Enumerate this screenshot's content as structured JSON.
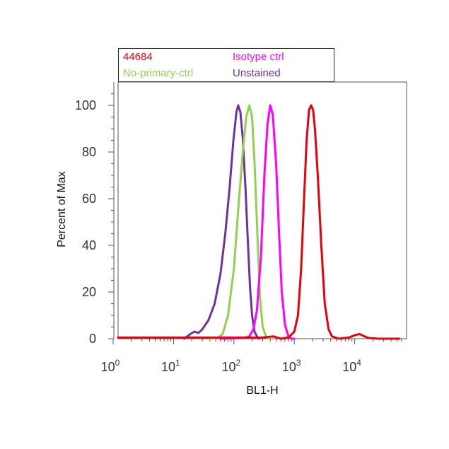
{
  "chart_data": {
    "type": "line",
    "xlabel": "BL1-H",
    "ylabel": "Percent of Max",
    "x_scale": "log",
    "xlim": [
      1,
      60000
    ],
    "ylim": [
      0,
      110
    ],
    "x_ticks": [
      {
        "base": "10",
        "exp": "0",
        "value": 1
      },
      {
        "base": "10",
        "exp": "1",
        "value": 10
      },
      {
        "base": "10",
        "exp": "2",
        "value": 100
      },
      {
        "base": "10",
        "exp": "3",
        "value": 1000
      },
      {
        "base": "10",
        "exp": "4",
        "value": 10000
      }
    ],
    "y_ticks": [
      "0",
      "20",
      "40",
      "60",
      "80",
      "100"
    ],
    "legend_position": "top",
    "series": [
      {
        "name": "44684",
        "color": "#e8000b",
        "points": [
          [
            1,
            0.5
          ],
          [
            200,
            0.5
          ],
          [
            300,
            0.5
          ],
          [
            450,
            1
          ],
          [
            600,
            0
          ],
          [
            800,
            0.5
          ],
          [
            1000,
            3
          ],
          [
            1150,
            10
          ],
          [
            1300,
            30
          ],
          [
            1450,
            60
          ],
          [
            1600,
            85
          ],
          [
            1750,
            98
          ],
          [
            1900,
            100
          ],
          [
            2050,
            98
          ],
          [
            2200,
            90
          ],
          [
            2450,
            70
          ],
          [
            2800,
            40
          ],
          [
            3200,
            15
          ],
          [
            3700,
            4
          ],
          [
            4200,
            1
          ],
          [
            5500,
            0
          ],
          [
            8000,
            0.5
          ],
          [
            10000,
            1.5
          ],
          [
            12000,
            2
          ],
          [
            14500,
            1
          ],
          [
            17000,
            0.3
          ],
          [
            25000,
            0
          ],
          [
            55000,
            0
          ]
        ]
      },
      {
        "name": "Isotype ctrl",
        "color": "#ff00ff",
        "points": [
          [
            60,
            0
          ],
          [
            150,
            0.3
          ],
          [
            180,
            1
          ],
          [
            210,
            4
          ],
          [
            240,
            12
          ],
          [
            280,
            35
          ],
          [
            320,
            70
          ],
          [
            360,
            92
          ],
          [
            400,
            100
          ],
          [
            440,
            96
          ],
          [
            500,
            75
          ],
          [
            560,
            45
          ],
          [
            620,
            20
          ],
          [
            700,
            6
          ],
          [
            800,
            1
          ],
          [
            900,
            0
          ],
          [
            1000,
            0
          ]
        ]
      },
      {
        "name": "No-primary-ctrl",
        "color": "#92d050",
        "points": [
          [
            40,
            0
          ],
          [
            55,
            0.5
          ],
          [
            65,
            2
          ],
          [
            80,
            10
          ],
          [
            100,
            30
          ],
          [
            120,
            58
          ],
          [
            140,
            80
          ],
          [
            160,
            95
          ],
          [
            180,
            100
          ],
          [
            200,
            95
          ],
          [
            220,
            75
          ],
          [
            245,
            45
          ],
          [
            270,
            18
          ],
          [
            300,
            5
          ],
          [
            340,
            1
          ],
          [
            380,
            0
          ]
        ]
      },
      {
        "name": "Unstained",
        "color": "#7030a0",
        "points": [
          [
            15,
            0
          ],
          [
            19,
            2
          ],
          [
            22,
            3
          ],
          [
            26,
            2.5
          ],
          [
            30,
            4
          ],
          [
            38,
            8
          ],
          [
            48,
            15
          ],
          [
            60,
            28
          ],
          [
            72,
            45
          ],
          [
            85,
            65
          ],
          [
            98,
            85
          ],
          [
            110,
            97
          ],
          [
            118,
            100
          ],
          [
            128,
            97
          ],
          [
            140,
            86
          ],
          [
            155,
            65
          ],
          [
            170,
            42
          ],
          [
            185,
            22
          ],
          [
            200,
            10
          ],
          [
            220,
            3
          ],
          [
            240,
            1
          ],
          [
            260,
            0
          ]
        ]
      }
    ]
  }
}
